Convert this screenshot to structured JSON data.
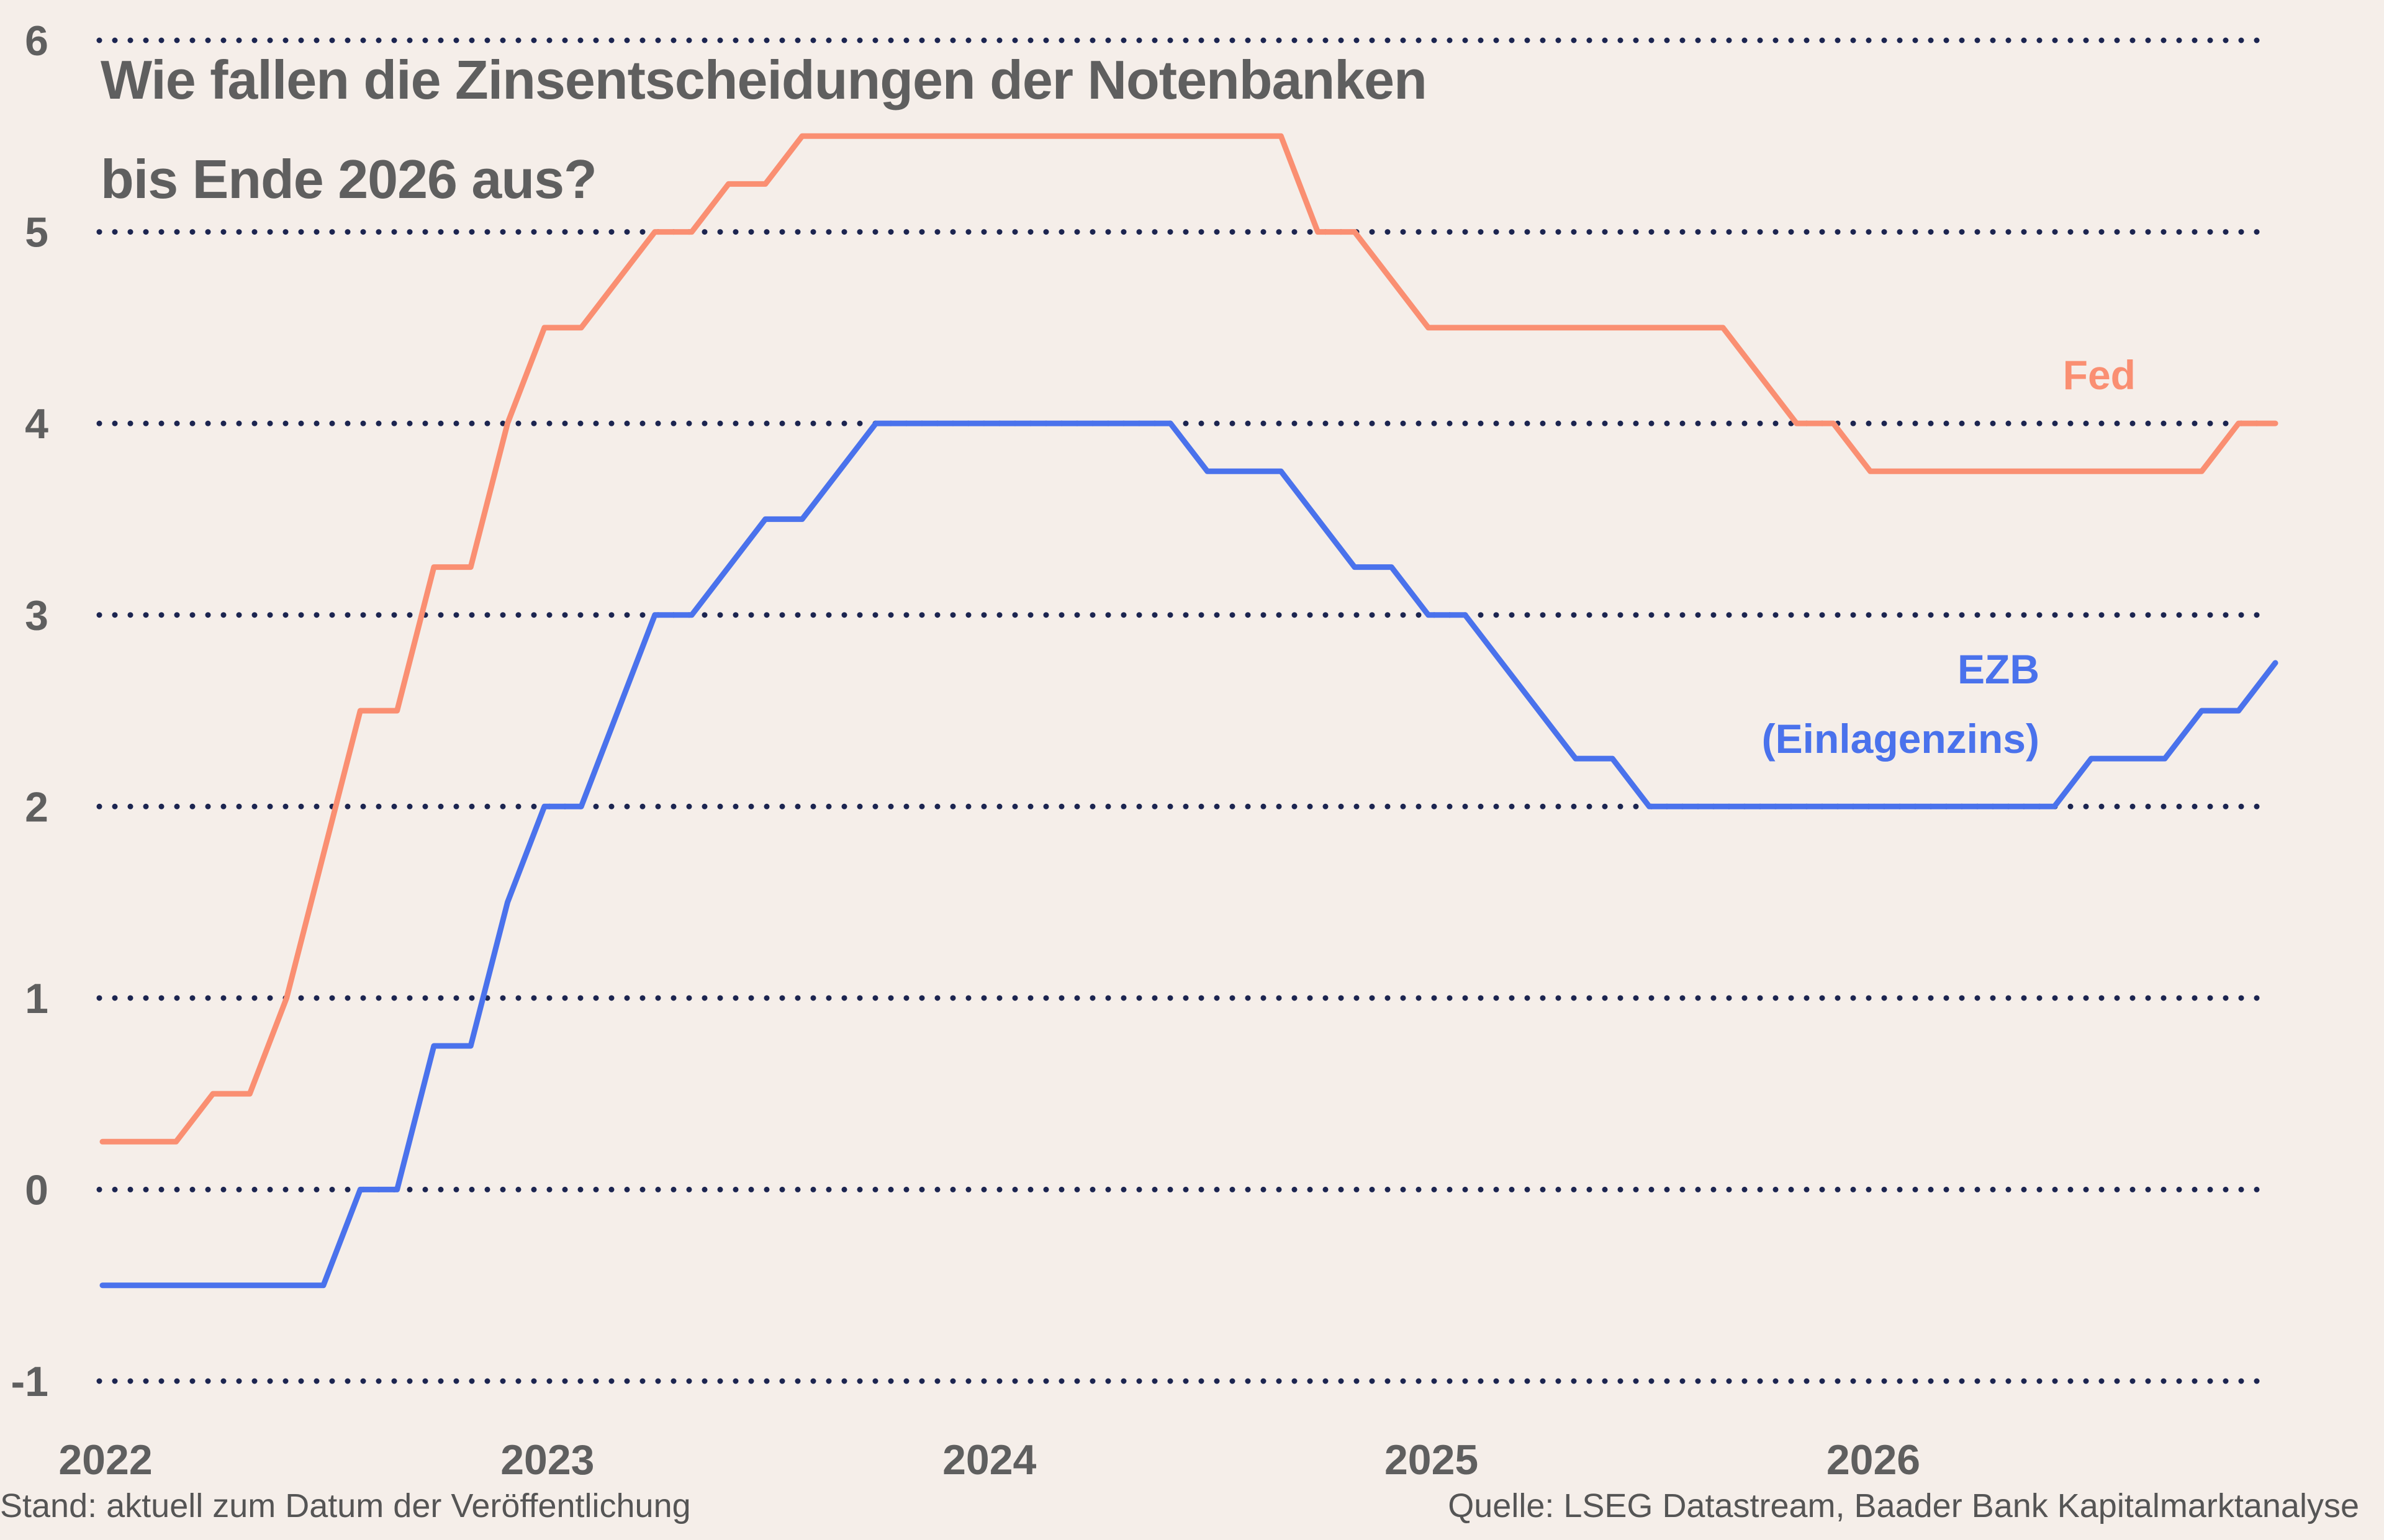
{
  "title": {
    "line1": "Wie fallen die Zinsentscheidungen der Notenbanken",
    "line2": "bis Ende 2026 aus?"
  },
  "footer": {
    "left": "Stand: aktuell zum Datum der Veröffentlichung",
    "right": "Quelle: LSEG Datastream, Baader Bank Kapitalmarktanalyse"
  },
  "colors": {
    "background": "#f5eee9",
    "fed": "#fa8f72",
    "ezb": "#4a72ec",
    "grid": "#1c2550",
    "text": "#5f5f5f"
  },
  "chart_data": {
    "type": "line",
    "title": "Wie fallen die Zinsentscheidungen der Notenbanken bis Ende 2026 aus?",
    "xlabel": "",
    "ylabel": "",
    "xlim": [
      "2022-01",
      "2026-12"
    ],
    "ylim": [
      -1,
      6
    ],
    "yticks": [
      -1,
      0,
      1,
      2,
      3,
      4,
      5,
      6
    ],
    "xticks": [
      {
        "label": "2022",
        "x": "2022-01"
      },
      {
        "label": "2023",
        "x": "2023-01"
      },
      {
        "label": "2024",
        "x": "2024-01"
      },
      {
        "label": "2025",
        "x": "2025-01"
      },
      {
        "label": "2026",
        "x": "2026-01"
      }
    ],
    "grid": "horizontal dotted",
    "legend": "inline labels at right",
    "series": [
      {
        "name": "Fed",
        "label_lines": [
          "Fed"
        ],
        "color": "#fa8f72",
        "points": [
          [
            "2022-01",
            0.25
          ],
          [
            "2022-03",
            0.25
          ],
          [
            "2022-04",
            0.5
          ],
          [
            "2022-05",
            0.5
          ],
          [
            "2022-06",
            1.0
          ],
          [
            "2022-08",
            2.5
          ],
          [
            "2022-09",
            2.5
          ],
          [
            "2022-10",
            3.25
          ],
          [
            "2022-11",
            3.25
          ],
          [
            "2022-12",
            4.0
          ],
          [
            "2023-01",
            4.5
          ],
          [
            "2023-02",
            4.5
          ],
          [
            "2023-03",
            4.75
          ],
          [
            "2023-04",
            5.0
          ],
          [
            "2023-05",
            5.0
          ],
          [
            "2023-06",
            5.25
          ],
          [
            "2023-07",
            5.25
          ],
          [
            "2023-08",
            5.5
          ],
          [
            "2024-09",
            5.5
          ],
          [
            "2024-10",
            5.0
          ],
          [
            "2024-11",
            5.0
          ],
          [
            "2024-12",
            4.75
          ],
          [
            "2025-01",
            4.5
          ],
          [
            "2025-09",
            4.5
          ],
          [
            "2025-11",
            4.0
          ],
          [
            "2025-12",
            4.0
          ],
          [
            "2026-01",
            3.75
          ],
          [
            "2026-10",
            3.75
          ],
          [
            "2026-11",
            4.0
          ],
          [
            "2026-12",
            4.0
          ]
        ]
      },
      {
        "name": "EZB (Einlagenzins)",
        "label_lines": [
          "EZB",
          "(Einlagenzins)"
        ],
        "color": "#4a72ec",
        "points": [
          [
            "2022-01",
            -0.5
          ],
          [
            "2022-07",
            -0.5
          ],
          [
            "2022-08",
            0.0
          ],
          [
            "2022-09",
            0.0
          ],
          [
            "2022-10",
            0.75
          ],
          [
            "2022-11",
            0.75
          ],
          [
            "2022-12",
            1.5
          ],
          [
            "2023-01",
            2.0
          ],
          [
            "2023-02",
            2.0
          ],
          [
            "2023-03",
            2.5
          ],
          [
            "2023-04",
            3.0
          ],
          [
            "2023-05",
            3.0
          ],
          [
            "2023-06",
            3.25
          ],
          [
            "2023-07",
            3.5
          ],
          [
            "2023-08",
            3.5
          ],
          [
            "2023-10",
            4.0
          ],
          [
            "2024-06",
            4.0
          ],
          [
            "2024-07",
            3.75
          ],
          [
            "2024-09",
            3.75
          ],
          [
            "2024-11",
            3.25
          ],
          [
            "2024-12",
            3.25
          ],
          [
            "2025-01",
            3.0
          ],
          [
            "2025-02",
            3.0
          ],
          [
            "2025-03",
            2.75
          ],
          [
            "2025-05",
            2.25
          ],
          [
            "2025-06",
            2.25
          ],
          [
            "2025-07",
            2.0
          ],
          [
            "2026-06",
            2.0
          ],
          [
            "2026-07",
            2.25
          ],
          [
            "2026-09",
            2.25
          ],
          [
            "2026-10",
            2.5
          ],
          [
            "2026-11",
            2.5
          ],
          [
            "2026-12",
            2.75
          ]
        ]
      }
    ]
  }
}
